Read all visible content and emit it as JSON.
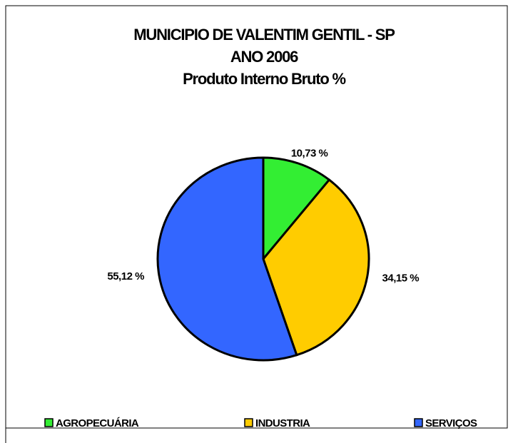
{
  "chart_data": {
    "type": "pie",
    "title": [
      "MUNICIPIO DE VALENTIM GENTIL - SP",
      "ANO 2006",
      "Produto Interno Bruto %"
    ],
    "categories": [
      "AGROPECUÁRIA",
      "INDUSTRIA",
      "SERVIÇOS"
    ],
    "values": [
      10.73,
      34.15,
      55.12
    ],
    "value_labels": [
      "10,73 %",
      "34,15 %",
      "55,12 %"
    ],
    "colors": [
      "#33ee33",
      "#ffcc00",
      "#3366ff"
    ],
    "legend": "bottom"
  }
}
